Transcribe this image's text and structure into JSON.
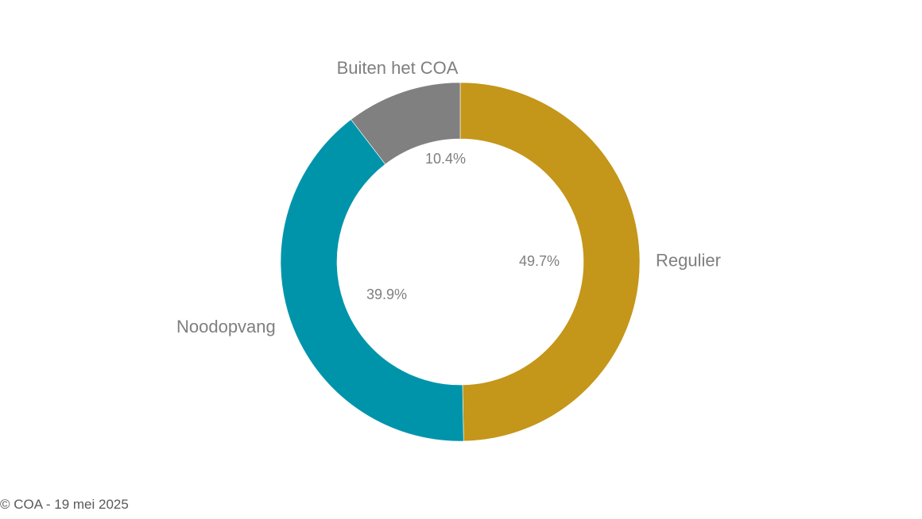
{
  "chart_data": {
    "type": "pie",
    "variant": "donut",
    "title": "",
    "slices": [
      {
        "label": "Regulier",
        "value": 49.7,
        "value_label": "49.7%",
        "color": "#c4961a"
      },
      {
        "label": "Noodopvang",
        "value": 39.9,
        "value_label": "39.9%",
        "color": "#0094ab"
      },
      {
        "label": "Buiten het COA",
        "value": 10.4,
        "value_label": "10.4%",
        "color": "#808080"
      }
    ],
    "start_direction": "top",
    "direction": "clockwise",
    "legend": "none",
    "label_color": "#7f7f7f"
  },
  "footer": {
    "text": "© COA - 19 mei 2025"
  }
}
